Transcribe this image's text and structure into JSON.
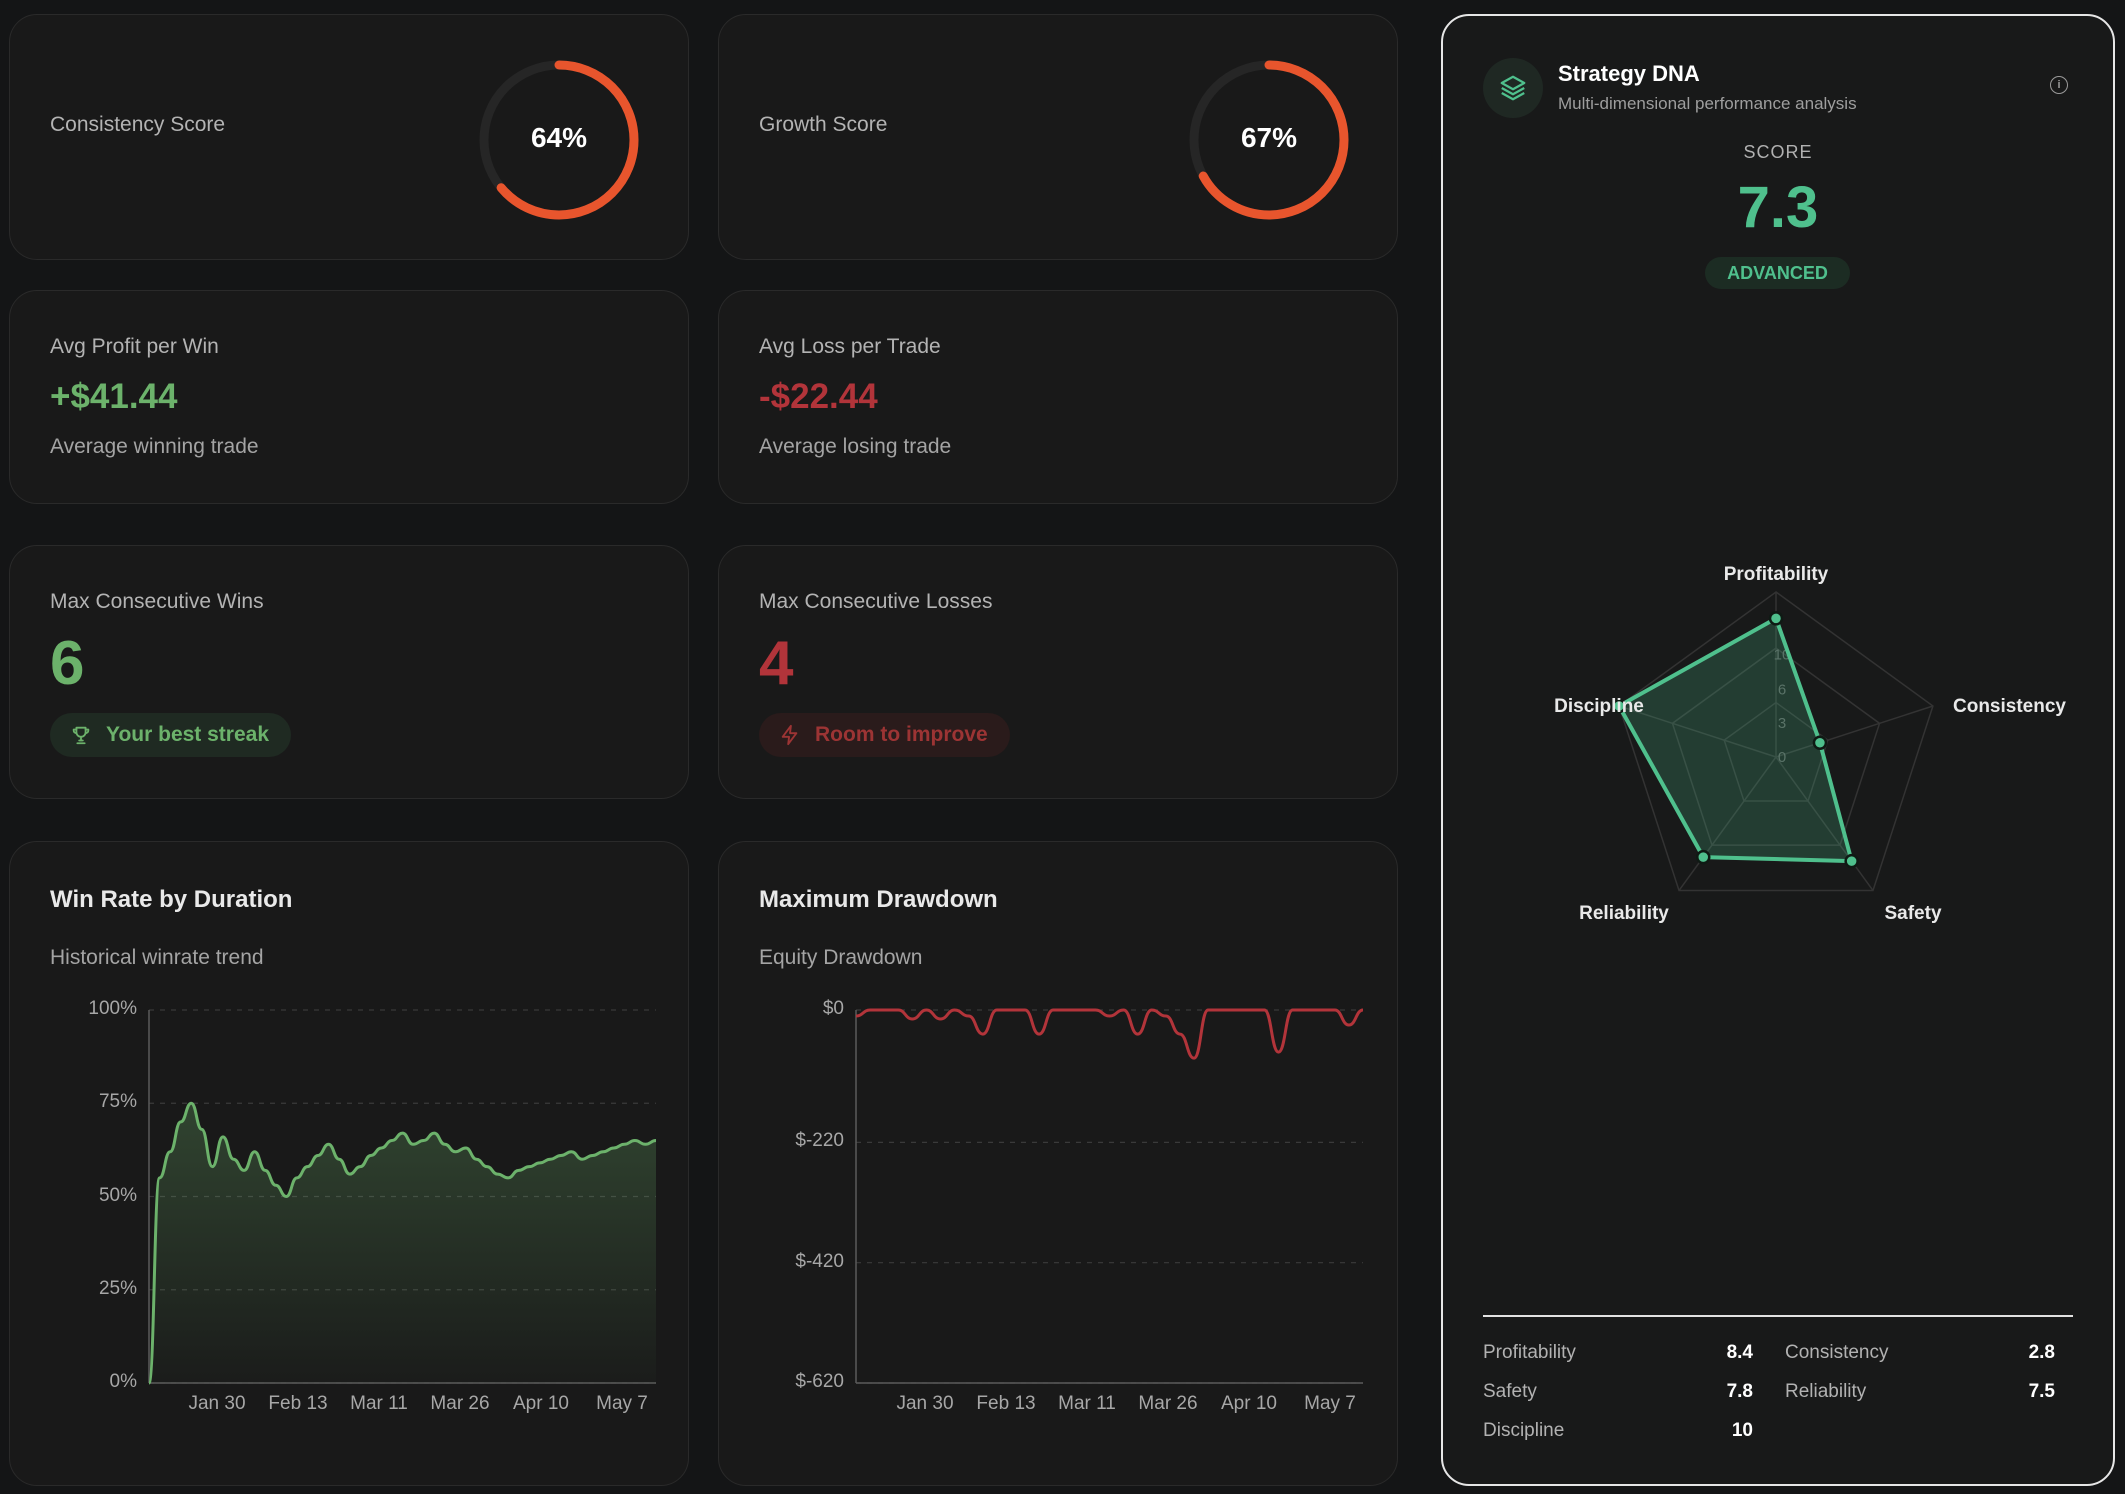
{
  "consistency": {
    "label": "Consistency Score",
    "value_text": "64%",
    "value": 0.64
  },
  "growth": {
    "label": "Growth Score",
    "value_text": "67%",
    "value": 0.67
  },
  "avg_profit": {
    "label": "Avg Profit per Win",
    "value": "+$41.44",
    "desc": "Average winning trade"
  },
  "avg_loss": {
    "label": "Avg Loss per Trade",
    "value": "-$22.44",
    "desc": "Average losing trade"
  },
  "max_wins": {
    "label": "Max Consecutive Wins",
    "value": "6",
    "badge": "Your best streak",
    "badge_icon": "trophy-icon"
  },
  "max_losses": {
    "label": "Max Consecutive Losses",
    "value": "4",
    "badge": "Room to improve",
    "badge_icon": "lightning-icon"
  },
  "colors": {
    "accent_orange": "#e8552d",
    "green": "#6cb26b",
    "red": "#b2343a",
    "teal": "#4fc08d"
  },
  "winrate_chart": {
    "title": "Win Rate by Duration",
    "subtitle": "Historical winrate trend",
    "chart_data": {
      "type": "area",
      "y_ticks": [
        "100%",
        "75%",
        "50%",
        "25%",
        "0%"
      ],
      "x_ticks": [
        "Jan 30",
        "Feb 13",
        "Mar 11",
        "Mar 26",
        "Apr 10",
        "May 7"
      ],
      "ylim": [
        0,
        100
      ],
      "grid": true,
      "values": [
        0,
        55,
        62,
        70,
        75,
        68,
        58,
        66,
        60,
        57,
        62,
        57,
        53,
        50,
        55,
        58,
        61,
        64,
        60,
        56,
        58,
        61,
        63,
        65,
        67,
        64,
        65,
        67,
        64,
        62,
        63,
        60,
        58,
        56,
        55,
        57,
        58,
        59,
        60,
        61,
        62,
        60,
        61,
        62,
        63,
        64,
        65,
        64,
        65
      ]
    }
  },
  "drawdown_chart": {
    "title": "Maximum Drawdown",
    "subtitle": "Equity Drawdown",
    "chart_data": {
      "type": "line",
      "y_ticks": [
        "$0",
        "$-220",
        "$-420",
        "$-620"
      ],
      "x_ticks": [
        "Jan 30",
        "Feb 13",
        "Mar 11",
        "Mar 26",
        "Apr 10",
        "May 7"
      ],
      "ylim": [
        -620,
        0
      ],
      "grid": true,
      "values": [
        -10,
        0,
        0,
        0,
        -15,
        0,
        -15,
        0,
        -10,
        -40,
        0,
        0,
        0,
        -40,
        0,
        0,
        0,
        0,
        -10,
        0,
        -40,
        0,
        -10,
        -40,
        -80,
        0,
        0,
        0,
        0,
        0,
        -70,
        0,
        0,
        0,
        0,
        -25,
        0
      ]
    }
  },
  "dna": {
    "title": "Strategy DNA",
    "subtitle": "Multi-dimensional performance analysis",
    "icon": "layers-icon",
    "info_icon": "info-icon",
    "score_label": "SCORE",
    "score": "7.3",
    "level": "ADVANCED",
    "chart_data": {
      "type": "radar",
      "axes": [
        "Profitability",
        "Consistency",
        "Safety",
        "Reliability",
        "Discipline"
      ],
      "values": [
        8.4,
        2.8,
        7.8,
        7.5,
        10
      ],
      "rmax": 10,
      "ring_labels": [
        "10",
        "6",
        "3",
        "0"
      ]
    },
    "stats": [
      {
        "label": "Profitability",
        "value": "8.4"
      },
      {
        "label": "Consistency",
        "value": "2.8"
      },
      {
        "label": "Safety",
        "value": "7.8"
      },
      {
        "label": "Reliability",
        "value": "7.5"
      },
      {
        "label": "Discipline",
        "value": "10"
      }
    ]
  }
}
